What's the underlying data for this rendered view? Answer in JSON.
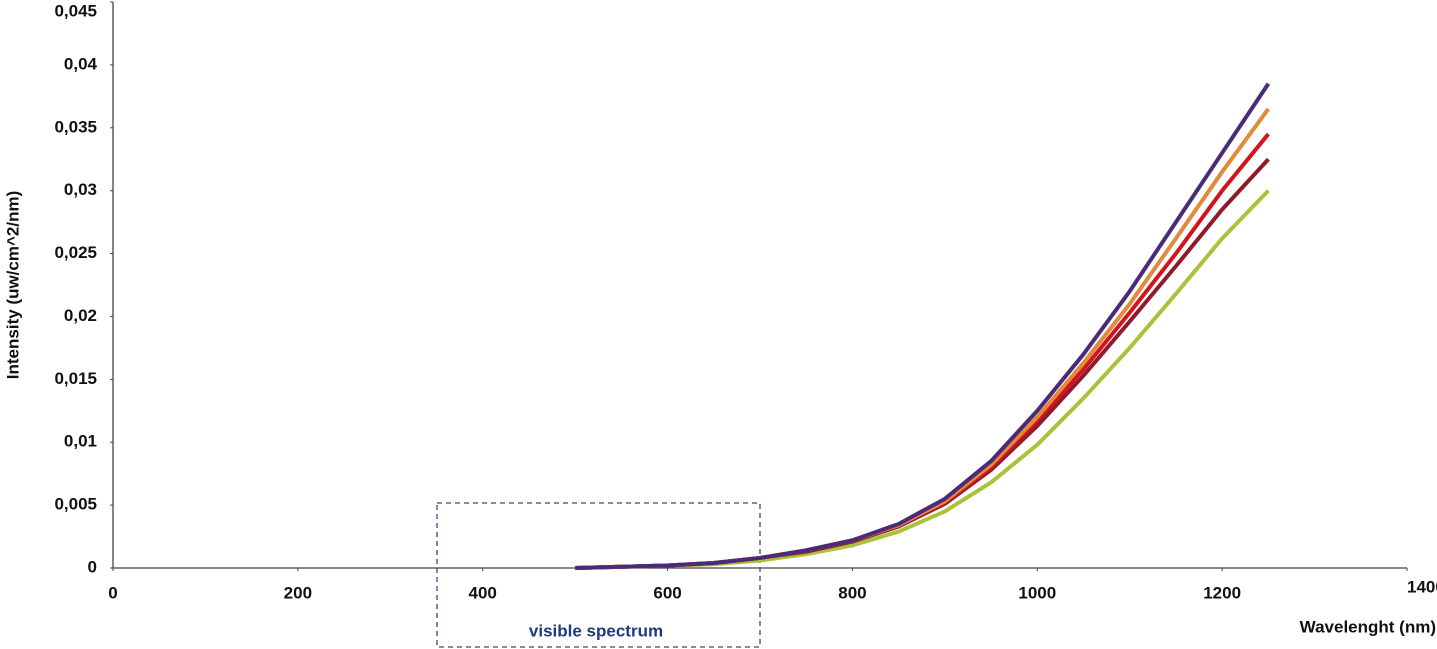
{
  "chart_data": {
    "type": "line",
    "x_label": "Wavelenght (nm)",
    "y_label": "Intensity (uw/cm^2/nm)",
    "annotation": "visible spectrum",
    "x": [
      500,
      550,
      600,
      650,
      700,
      750,
      800,
      850,
      900,
      950,
      1000,
      1050,
      1100,
      1150,
      1200,
      1250
    ],
    "series": [
      {
        "color": "#4b2a7a",
        "values": [
          0,
          0.0001,
          0.0002,
          0.0004,
          0.0008,
          0.0014,
          0.0022,
          0.0035,
          0.0055,
          0.0085,
          0.0125,
          0.017,
          0.022,
          0.0275,
          0.033,
          0.0385
        ]
      },
      {
        "color": "#e08a3a",
        "values": [
          0,
          0.0001,
          0.0002,
          0.0004,
          0.0008,
          0.0014,
          0.0022,
          0.0034,
          0.0053,
          0.0082,
          0.012,
          0.0163,
          0.021,
          0.0262,
          0.0315,
          0.0365
        ]
      },
      {
        "color": "#d4141c",
        "values": [
          0,
          0.0001,
          0.0002,
          0.0004,
          0.0008,
          0.0014,
          0.0022,
          0.0034,
          0.0052,
          0.008,
          0.0117,
          0.0158,
          0.0203,
          0.025,
          0.03,
          0.0345
        ]
      },
      {
        "color": "#8e1b2a",
        "values": [
          0,
          0.0001,
          0.0002,
          0.0004,
          0.0008,
          0.0013,
          0.0021,
          0.0033,
          0.0051,
          0.0078,
          0.0113,
          0.0153,
          0.0196,
          0.024,
          0.0285,
          0.0325
        ]
      },
      {
        "color": "#a9c23a",
        "values": [
          0,
          0.0001,
          0.0002,
          0.0003,
          0.0006,
          0.0011,
          0.0018,
          0.0029,
          0.0045,
          0.0068,
          0.0098,
          0.0135,
          0.0175,
          0.0218,
          0.0262,
          0.03
        ]
      }
    ],
    "xlim": [
      0,
      1400
    ],
    "xticks": [
      0,
      200,
      400,
      600,
      800,
      1000,
      1200,
      1400
    ],
    "ylim": [
      0,
      0.045
    ],
    "yticks": [
      0,
      {
        "value": 0.005,
        "label": "0,005"
      },
      {
        "value": 0.01,
        "label": "0,01"
      },
      {
        "value": 0.015,
        "label": "0,015"
      },
      {
        "value": 0.02,
        "label": "0,02"
      },
      {
        "value": 0.025,
        "label": "0,025"
      },
      {
        "value": 0.03,
        "label": "0,03"
      },
      {
        "value": 0.035,
        "label": "0,035"
      },
      {
        "value": 0.04,
        "label": "0,04"
      },
      {
        "value": 0.045,
        "label": "0,045"
      }
    ]
  }
}
